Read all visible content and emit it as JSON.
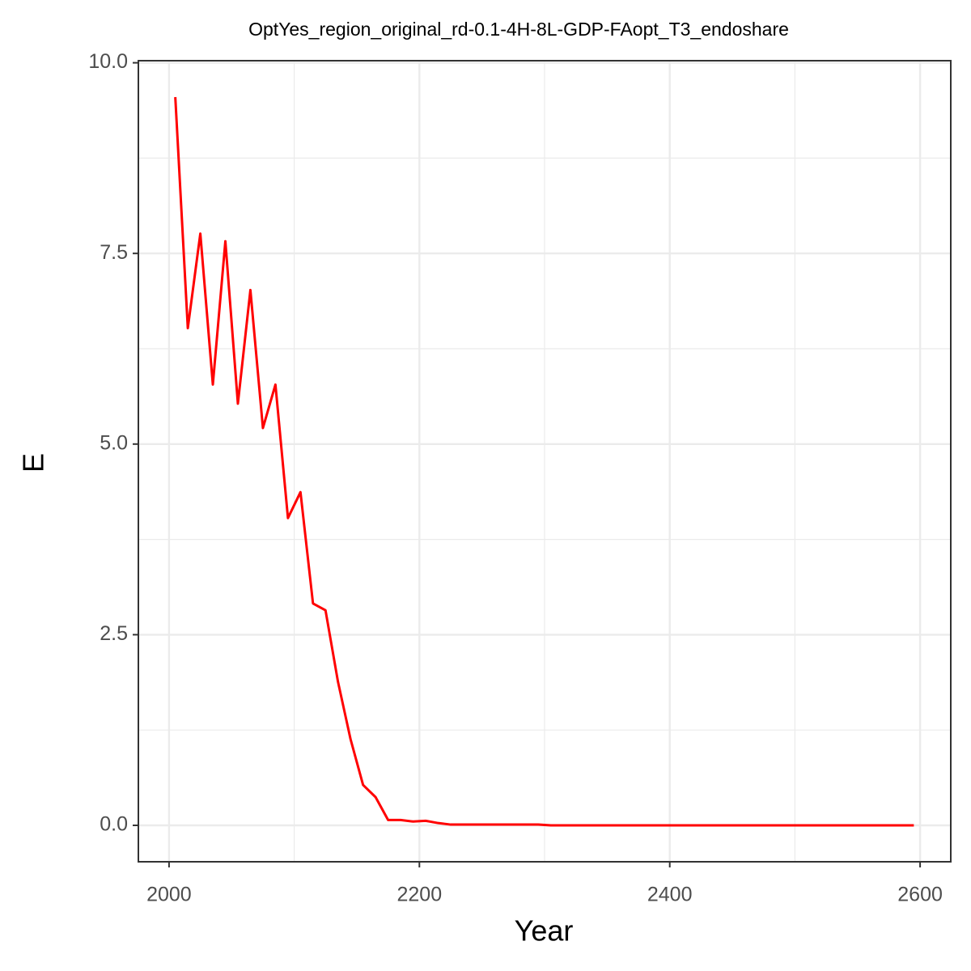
{
  "chart_data": {
    "type": "line",
    "title": "OptYes_region_original_rd-0.1-4H-8L-GDP-FAopt_T3_endoshare",
    "x_label": "Year",
    "y_label": "E",
    "x": [
      2005,
      2015,
      2025,
      2035,
      2045,
      2055,
      2065,
      2075,
      2085,
      2095,
      2105,
      2115,
      2125,
      2135,
      2145,
      2155,
      2165,
      2175,
      2185,
      2195,
      2205,
      2215,
      2225,
      2235,
      2245,
      2255,
      2265,
      2275,
      2285,
      2295,
      2305,
      2315,
      2325,
      2335,
      2345,
      2355,
      2365,
      2375,
      2385,
      2395,
      2405,
      2415,
      2425,
      2435,
      2445,
      2455,
      2465,
      2475,
      2485,
      2495,
      2505,
      2515,
      2525,
      2535,
      2545,
      2555,
      2565,
      2575,
      2585,
      2595
    ],
    "series": [
      {
        "color": "#ff0000",
        "values": [
          9.55,
          6.52,
          7.76,
          5.78,
          7.66,
          5.53,
          7.02,
          5.21,
          5.78,
          4.03,
          4.37,
          2.91,
          2.82,
          1.88,
          1.13,
          0.53,
          0.37,
          0.07,
          0.07,
          0.05,
          0.06,
          0.03,
          0.01,
          0.01,
          0.01,
          0.01,
          0.01,
          0.01,
          0.01,
          0.01,
          0,
          0,
          0,
          0,
          0,
          0,
          0,
          0,
          0,
          0,
          0,
          0,
          0,
          0,
          0,
          0,
          0,
          0,
          0,
          0,
          0,
          0,
          0,
          0,
          0,
          0,
          0,
          0,
          0,
          0
        ]
      }
    ],
    "xlim": [
      1975.5,
      2624.5
    ],
    "ylim": [
      -0.4775,
      10.0275
    ],
    "xticks": [
      2000,
      2200,
      2400,
      2600
    ],
    "yticks": [
      {
        "value": 0,
        "label": "0.0"
      },
      2.5,
      {
        "value": 5,
        "label": "5.0"
      },
      7.5,
      {
        "value": 10,
        "label": "10.0"
      }
    ],
    "minor_xticks": [
      2100,
      2300,
      2500
    ],
    "minor_yticks": [
      1.25,
      3.75,
      6.25,
      8.75
    ],
    "grid": true
  }
}
